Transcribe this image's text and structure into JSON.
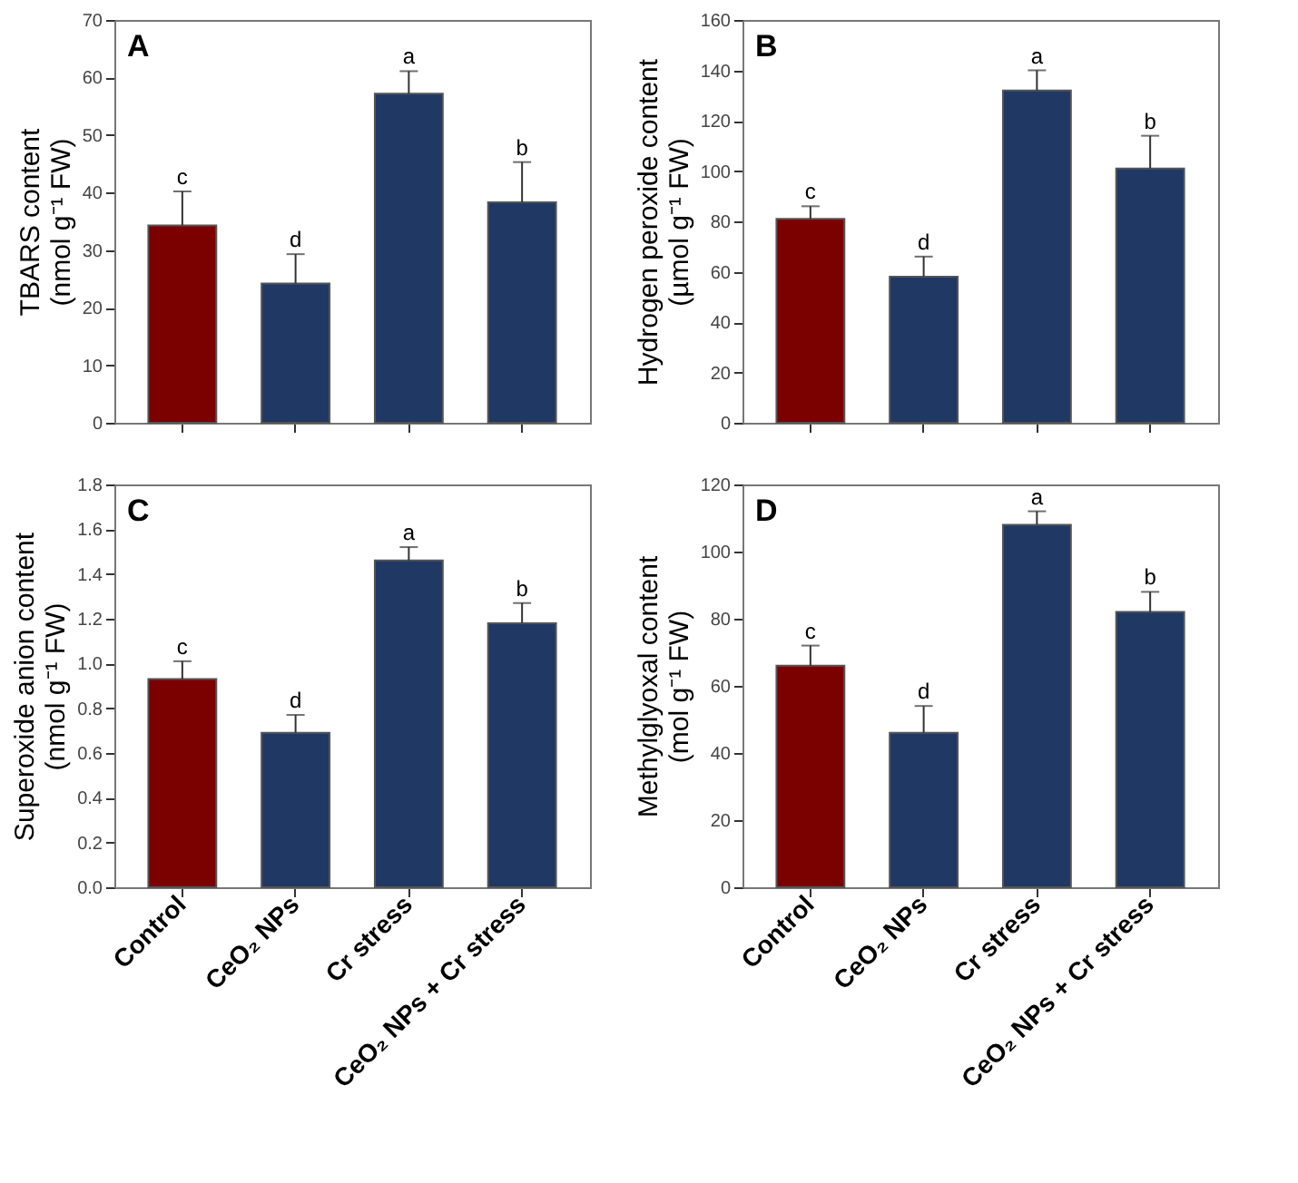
{
  "chart_data": [
    {
      "type": "bar",
      "title": "A",
      "ylabel": "TBARS content\n(nmol g⁻¹ FW)",
      "categories": [
        "Control",
        "CeO₂ NPs",
        "Cr stress",
        "CeO₂ NPs + Cr stress"
      ],
      "values": [
        34.3,
        24.2,
        57.2,
        38.3
      ],
      "colors": [
        "#7b0000",
        "#1f3864",
        "#1f3864",
        "#1f3864"
      ],
      "errors": [
        [
          34.3,
          40.2
        ],
        [
          24.2,
          29.3
        ],
        [
          57.2,
          61.1
        ],
        [
          38.3,
          45.3
        ]
      ],
      "ylim": [
        0,
        70
      ],
      "yticks": [
        0,
        10,
        20,
        30,
        40,
        50,
        60,
        70
      ],
      "grid": false,
      "tick_labels": "y",
      "annotations": [
        {
          "text": "c",
          "x": "Control",
          "y": 40.2
        },
        {
          "text": "d",
          "x": "CeO₂ NPs",
          "y": 29.3
        },
        {
          "text": "a",
          "x": "Cr stress",
          "y": 61.1
        },
        {
          "text": "b",
          "x": "CeO₂ NPs + Cr stress",
          "y": 45.3
        }
      ]
    },
    {
      "type": "bar",
      "title": "B",
      "ylabel": "Hydrogen peroxide content\n(µmol g⁻¹ FW)",
      "categories": [
        "Control",
        "CeO₂ NPs",
        "Cr stress",
        "CeO₂ NPs + Cr stress"
      ],
      "values": [
        81,
        58,
        132,
        101
      ],
      "colors": [
        "#7b0000",
        "#1f3864",
        "#1f3864",
        "#1f3864"
      ],
      "errors": [
        [
          81,
          86
        ],
        [
          58,
          66
        ],
        [
          132,
          140
        ],
        [
          101,
          114
        ]
      ],
      "ylim": [
        0,
        160
      ],
      "yticks": [
        0,
        20,
        40,
        60,
        80,
        100,
        120,
        140,
        160
      ],
      "grid": false,
      "tick_labels": "y",
      "annotations": [
        {
          "text": "c",
          "x": "Control",
          "y": 86
        },
        {
          "text": "d",
          "x": "CeO₂ NPs",
          "y": 66
        },
        {
          "text": "a",
          "x": "Cr stress",
          "y": 140
        },
        {
          "text": "b",
          "x": "CeO₂ NPs + Cr stress",
          "y": 114
        }
      ]
    },
    {
      "type": "bar",
      "title": "C",
      "ylabel": "Superoxide anion content\n(nmol g⁻¹ FW)",
      "categories": [
        "Control",
        "CeO₂ NPs",
        "Cr stress",
        "CeO₂ NPs + Cr stress"
      ],
      "values": [
        0.93,
        0.69,
        1.46,
        1.18
      ],
      "colors": [
        "#7b0000",
        "#1f3864",
        "#1f3864",
        "#1f3864"
      ],
      "errors": [
        [
          0.93,
          1.01
        ],
        [
          0.69,
          0.77
        ],
        [
          1.46,
          1.52
        ],
        [
          1.18,
          1.27
        ]
      ],
      "ylim": [
        0,
        1.8
      ],
      "yticks": [
        {
          "value": 0,
          "label": "0.0"
        },
        {
          "value": 0.2,
          "label": "0.2"
        },
        {
          "value": 0.4,
          "label": "0.4"
        },
        {
          "value": 0.6,
          "label": "0.6"
        },
        {
          "value": 0.8,
          "label": "0.8"
        },
        {
          "value": 1.0,
          "label": "1.0"
        },
        {
          "value": 1.2,
          "label": "1.2"
        },
        {
          "value": 1.4,
          "label": "1.4"
        },
        {
          "value": 1.6,
          "label": "1.6"
        },
        {
          "value": 1.8,
          "label": "1.8"
        }
      ],
      "grid": false,
      "annotations": [
        {
          "text": "c",
          "x": "Control",
          "y": 1.01
        },
        {
          "text": "d",
          "x": "CeO₂ NPs",
          "y": 0.77
        },
        {
          "text": "a",
          "x": "Cr stress",
          "y": 1.52
        },
        {
          "text": "b",
          "x": "CeO₂ NPs + Cr stress",
          "y": 1.27
        }
      ]
    },
    {
      "type": "bar",
      "title": "D",
      "ylabel": "Methylglyoxal content\n(mol g⁻¹ FW)",
      "categories": [
        "Control",
        "CeO₂ NPs",
        "Cr stress",
        "CeO₂ NPs + Cr stress"
      ],
      "values": [
        66,
        46,
        108,
        82
      ],
      "colors": [
        "#7b0000",
        "#1f3864",
        "#1f3864",
        "#1f3864"
      ],
      "errors": [
        [
          66,
          72
        ],
        [
          46,
          54
        ],
        [
          108,
          112
        ],
        [
          82,
          88
        ]
      ],
      "ylim": [
        0,
        120
      ],
      "yticks": [
        0,
        20,
        40,
        60,
        80,
        100,
        120
      ],
      "grid": false,
      "annotations": [
        {
          "text": "c",
          "x": "Control",
          "y": 72
        },
        {
          "text": "d",
          "x": "CeO₂ NPs",
          "y": 54
        },
        {
          "text": "a",
          "x": "Cr stress",
          "y": 112
        },
        {
          "text": "b",
          "x": "CeO₂ NPs + Cr stress",
          "y": 88
        }
      ]
    }
  ]
}
